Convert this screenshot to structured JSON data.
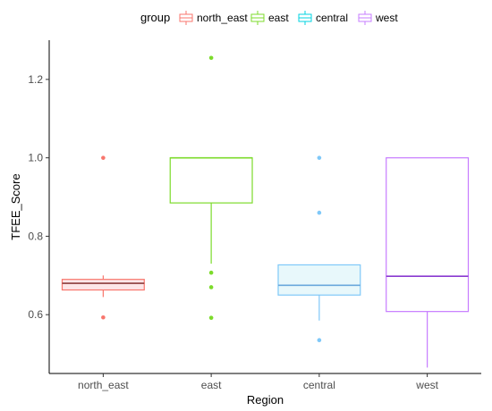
{
  "chart_data": {
    "type": "boxplot",
    "xlabel": "Region",
    "ylabel": "TFEE_Score",
    "ylim": [
      0.45,
      1.3
    ],
    "yticks": [
      0.6,
      0.8,
      1.0,
      1.2
    ],
    "ytick_labels": [
      "0.6",
      "0.8",
      "1.0",
      "1.2"
    ],
    "categories": [
      "north_east",
      "east",
      "central",
      "west"
    ],
    "legend": {
      "title": "group",
      "position": "top",
      "entries": [
        "north_east",
        "east",
        "central",
        "west"
      ]
    },
    "series": [
      {
        "name": "north_east",
        "color": "#f8766d",
        "fill": "#fde6e8",
        "median_color": "#8b3a3a",
        "min": 0.645,
        "q1": 0.663,
        "median": 0.68,
        "q3": 0.69,
        "max": 0.7,
        "outliers": [
          1.0,
          0.593
        ]
      },
      {
        "name": "east",
        "color": "#7cdb2b",
        "fill": "#ffffff",
        "median_color": "#7cdb2b",
        "min": 0.73,
        "q1": 0.885,
        "median": 1.0,
        "q3": 1.0,
        "max": 1.0,
        "outliers": [
          1.255,
          0.707,
          0.67,
          0.592
        ]
      },
      {
        "name": "central",
        "color": "#7fc8f8",
        "fill": "#e8f8fb",
        "median_color": "#6aa8dc",
        "min": 0.585,
        "q1": 0.65,
        "median": 0.675,
        "q3": 0.727,
        "max": 0.727,
        "outliers": [
          1.0,
          0.86,
          0.535
        ]
      },
      {
        "name": "west",
        "color": "#c77cff",
        "fill": "#ffffff",
        "median_color": "#8a3ad0",
        "min": 0.465,
        "q1": 0.608,
        "median": 0.698,
        "q3": 1.0,
        "max": 1.0,
        "outliers": []
      }
    ],
    "grid": false
  },
  "legend_colors": [
    "#f8766d",
    "#7cdb2b",
    "#00d3e0",
    "#c77cff"
  ]
}
